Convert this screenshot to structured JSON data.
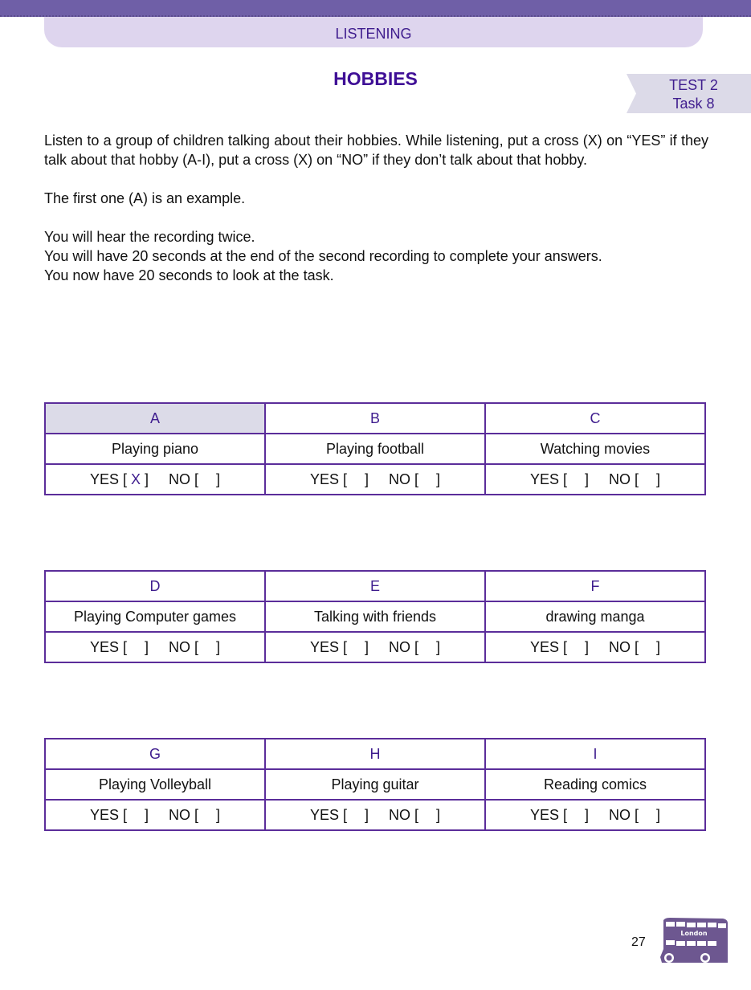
{
  "header": {
    "section": "LISTENING",
    "title": "HOBBIES",
    "test": "TEST 2",
    "task": "Task 8"
  },
  "instructions": [
    "Listen to a group of children talking about their hobbies. While listening, put a cross (X) on “YES” if they talk about that hobby (A-I), put a cross (X) on “NO” if they don’t talk about that hobby.",
    "The first one (A) is an example.",
    "You will hear the recording twice.",
    "You will have 20 seconds at the end of the second recording to complete your answers.",
    "You now have 20 seconds to look at the task."
  ],
  "labels": {
    "yes": "YES [",
    "no": "NO [",
    "close": "]"
  },
  "hobbies": [
    {
      "letter": "A",
      "name": "Playing piano",
      "yes": "X",
      "no": ""
    },
    {
      "letter": "B",
      "name": "Playing football",
      "yes": "",
      "no": ""
    },
    {
      "letter": "C",
      "name": "Watching movies",
      "yes": "",
      "no": ""
    },
    {
      "letter": "D",
      "name": "Playing Computer games",
      "yes": "",
      "no": ""
    },
    {
      "letter": "E",
      "name": "Talking with friends",
      "yes": "",
      "no": ""
    },
    {
      "letter": "F",
      "name": "drawing manga",
      "yes": "",
      "no": ""
    },
    {
      "letter": "G",
      "name": "Playing Volleyball",
      "yes": "",
      "no": ""
    },
    {
      "letter": "H",
      "name": "Playing guitar",
      "yes": "",
      "no": ""
    },
    {
      "letter": "I",
      "name": "Reading comics",
      "yes": "",
      "no": ""
    }
  ],
  "footer": {
    "page": "27",
    "logo_text": "London"
  },
  "colors": {
    "accent": "#6f5fa7",
    "text_purple": "#3f1d8e",
    "pill": "#ded5ee"
  }
}
